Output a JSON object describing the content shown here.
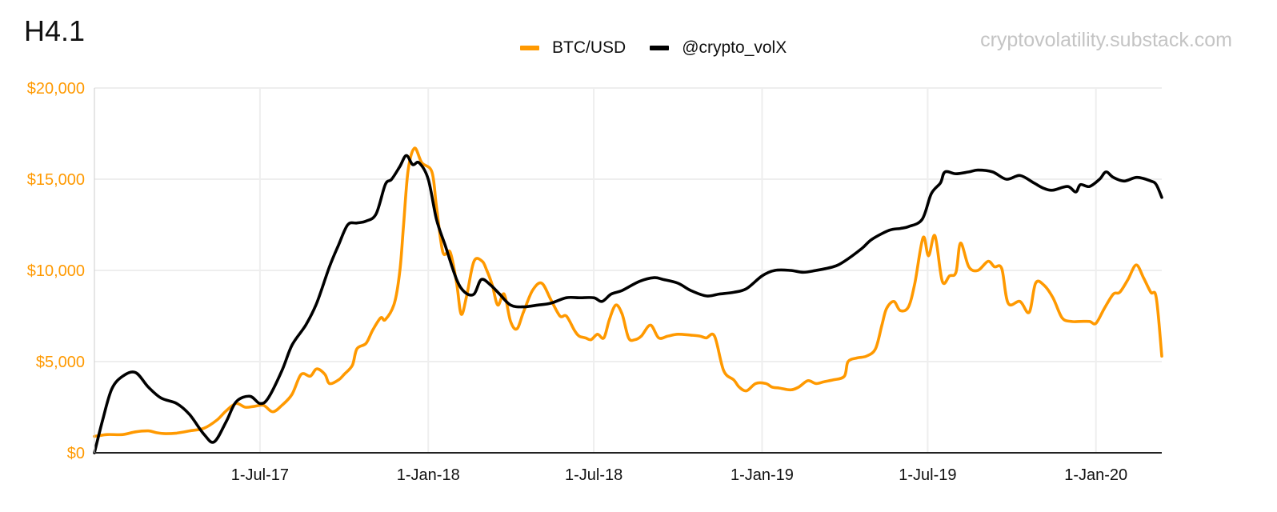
{
  "header": {
    "title": "H4.1",
    "watermark": "cryptovolatility.substack.com"
  },
  "colors": {
    "btc": "#ff9900",
    "volx": "#000000",
    "y_axis_text": "#ff9900",
    "grid": "#eeeeee"
  },
  "chart_data": {
    "type": "line",
    "title": "H4.1",
    "xlabel": "",
    "ylabel": "",
    "ylim": [
      0,
      20000
    ],
    "y_ticks": [
      0,
      5000,
      10000,
      15000,
      20000
    ],
    "y_tick_labels": [
      "$0",
      "$5,000",
      "$10,000",
      "$15,000",
      "$20,000"
    ],
    "x_range": [
      "2017-01-01",
      "2020-03-13"
    ],
    "x_ticks": [
      "2017-07-01",
      "2018-01-01",
      "2018-07-01",
      "2019-01-01",
      "2019-07-01",
      "2020-01-01"
    ],
    "x_tick_labels": [
      "1-Jul-17",
      "1-Jan-18",
      "1-Jul-18",
      "1-Jan-19",
      "1-Jul-19",
      "1-Jan-20"
    ],
    "grid": true,
    "legend_position": "top-center",
    "series": [
      {
        "name": "BTC/USD",
        "color": "#ff9900",
        "points": [
          [
            "2017-01-01",
            900
          ],
          [
            "2017-01-15",
            1000
          ],
          [
            "2017-02-01",
            1000
          ],
          [
            "2017-02-15",
            1150
          ],
          [
            "2017-03-01",
            1200
          ],
          [
            "2017-03-10",
            1100
          ],
          [
            "2017-03-20",
            1050
          ],
          [
            "2017-04-01",
            1080
          ],
          [
            "2017-04-15",
            1200
          ],
          [
            "2017-05-01",
            1350
          ],
          [
            "2017-05-15",
            1800
          ],
          [
            "2017-05-25",
            2300
          ],
          [
            "2017-06-05",
            2700
          ],
          [
            "2017-06-15",
            2500
          ],
          [
            "2017-06-25",
            2550
          ],
          [
            "2017-07-05",
            2600
          ],
          [
            "2017-07-15",
            2250
          ],
          [
            "2017-07-25",
            2600
          ],
          [
            "2017-08-05",
            3200
          ],
          [
            "2017-08-15",
            4300
          ],
          [
            "2017-08-25",
            4200
          ],
          [
            "2017-09-01",
            4600
          ],
          [
            "2017-09-10",
            4300
          ],
          [
            "2017-09-15",
            3800
          ],
          [
            "2017-09-25",
            4000
          ],
          [
            "2017-10-01",
            4300
          ],
          [
            "2017-10-10",
            4800
          ],
          [
            "2017-10-15",
            5700
          ],
          [
            "2017-10-25",
            6000
          ],
          [
            "2017-11-01",
            6700
          ],
          [
            "2017-11-10",
            7400
          ],
          [
            "2017-11-15",
            7300
          ],
          [
            "2017-11-25",
            8200
          ],
          [
            "2017-12-01",
            10000
          ],
          [
            "2017-12-05",
            12500
          ],
          [
            "2017-12-10",
            15500
          ],
          [
            "2017-12-17",
            16700
          ],
          [
            "2017-12-25",
            15900
          ],
          [
            "2018-01-05",
            15400
          ],
          [
            "2018-01-10",
            13500
          ],
          [
            "2018-01-17",
            11000
          ],
          [
            "2018-01-25",
            11000
          ],
          [
            "2018-02-01",
            9300
          ],
          [
            "2018-02-06",
            7600
          ],
          [
            "2018-02-12",
            8600
          ],
          [
            "2018-02-20",
            10500
          ],
          [
            "2018-03-01",
            10500
          ],
          [
            "2018-03-06",
            10000
          ],
          [
            "2018-03-12",
            9200
          ],
          [
            "2018-03-18",
            8100
          ],
          [
            "2018-03-25",
            8700
          ],
          [
            "2018-04-01",
            7200
          ],
          [
            "2018-04-08",
            6800
          ],
          [
            "2018-04-15",
            7700
          ],
          [
            "2018-04-25",
            8900
          ],
          [
            "2018-05-05",
            9300
          ],
          [
            "2018-05-15",
            8400
          ],
          [
            "2018-05-25",
            7500
          ],
          [
            "2018-06-01",
            7500
          ],
          [
            "2018-06-10",
            6700
          ],
          [
            "2018-06-15",
            6400
          ],
          [
            "2018-06-22",
            6300
          ],
          [
            "2018-06-28",
            6200
          ],
          [
            "2018-07-05",
            6500
          ],
          [
            "2018-07-12",
            6300
          ],
          [
            "2018-07-18",
            7300
          ],
          [
            "2018-07-25",
            8100
          ],
          [
            "2018-08-01",
            7600
          ],
          [
            "2018-08-08",
            6300
          ],
          [
            "2018-08-15",
            6200
          ],
          [
            "2018-08-22",
            6400
          ],
          [
            "2018-09-01",
            7000
          ],
          [
            "2018-09-10",
            6300
          ],
          [
            "2018-09-20",
            6400
          ],
          [
            "2018-10-01",
            6500
          ],
          [
            "2018-10-15",
            6450
          ],
          [
            "2018-10-25",
            6400
          ],
          [
            "2018-11-01",
            6300
          ],
          [
            "2018-11-10",
            6400
          ],
          [
            "2018-11-20",
            4500
          ],
          [
            "2018-12-01",
            4000
          ],
          [
            "2018-12-07",
            3600
          ],
          [
            "2018-12-15",
            3400
          ],
          [
            "2018-12-25",
            3800
          ],
          [
            "2019-01-05",
            3800
          ],
          [
            "2019-01-12",
            3600
          ],
          [
            "2019-01-20",
            3550
          ],
          [
            "2019-02-01",
            3450
          ],
          [
            "2019-02-10",
            3600
          ],
          [
            "2019-02-20",
            3950
          ],
          [
            "2019-03-01",
            3800
          ],
          [
            "2019-03-10",
            3900
          ],
          [
            "2019-03-20",
            4000
          ],
          [
            "2019-04-01",
            4200
          ],
          [
            "2019-04-05",
            5000
          ],
          [
            "2019-04-15",
            5200
          ],
          [
            "2019-04-25",
            5300
          ],
          [
            "2019-05-05",
            5700
          ],
          [
            "2019-05-12",
            7000
          ],
          [
            "2019-05-17",
            7900
          ],
          [
            "2019-05-25",
            8300
          ],
          [
            "2019-06-01",
            7800
          ],
          [
            "2019-06-10",
            8000
          ],
          [
            "2019-06-17",
            9300
          ],
          [
            "2019-06-26",
            11800
          ],
          [
            "2019-07-02",
            10800
          ],
          [
            "2019-07-09",
            11900
          ],
          [
            "2019-07-17",
            9400
          ],
          [
            "2019-07-25",
            9700
          ],
          [
            "2019-08-01",
            9900
          ],
          [
            "2019-08-06",
            11500
          ],
          [
            "2019-08-15",
            10200
          ],
          [
            "2019-08-25",
            10000
          ],
          [
            "2019-09-05",
            10500
          ],
          [
            "2019-09-12",
            10200
          ],
          [
            "2019-09-20",
            10100
          ],
          [
            "2019-09-27",
            8200
          ],
          [
            "2019-10-10",
            8300
          ],
          [
            "2019-10-20",
            7700
          ],
          [
            "2019-10-27",
            9300
          ],
          [
            "2019-11-05",
            9200
          ],
          [
            "2019-11-15",
            8500
          ],
          [
            "2019-11-25",
            7400
          ],
          [
            "2019-12-05",
            7200
          ],
          [
            "2019-12-15",
            7200
          ],
          [
            "2019-12-25",
            7200
          ],
          [
            "2020-01-01",
            7100
          ],
          [
            "2020-01-10",
            7900
          ],
          [
            "2020-01-20",
            8700
          ],
          [
            "2020-01-27",
            8800
          ],
          [
            "2020-02-05",
            9500
          ],
          [
            "2020-02-14",
            10300
          ],
          [
            "2020-02-22",
            9600
          ],
          [
            "2020-03-01",
            8800
          ],
          [
            "2020-03-07",
            8500
          ],
          [
            "2020-03-13",
            5300
          ]
        ]
      },
      {
        "name": "@crypto_volX",
        "color": "#000000",
        "points": [
          [
            "2017-01-01",
            0
          ],
          [
            "2017-01-10",
            1800
          ],
          [
            "2017-01-20",
            3500
          ],
          [
            "2017-02-01",
            4200
          ],
          [
            "2017-02-15",
            4400
          ],
          [
            "2017-03-01",
            3600
          ],
          [
            "2017-03-15",
            3000
          ],
          [
            "2017-04-01",
            2700
          ],
          [
            "2017-04-15",
            2100
          ],
          [
            "2017-05-01",
            1000
          ],
          [
            "2017-05-12",
            600
          ],
          [
            "2017-05-25",
            1700
          ],
          [
            "2017-06-05",
            2800
          ],
          [
            "2017-06-20",
            3100
          ],
          [
            "2017-07-01",
            2700
          ],
          [
            "2017-07-10",
            3000
          ],
          [
            "2017-07-25",
            4500
          ],
          [
            "2017-08-05",
            5900
          ],
          [
            "2017-08-20",
            7000
          ],
          [
            "2017-09-01",
            8200
          ],
          [
            "2017-09-15",
            10200
          ],
          [
            "2017-09-25",
            11400
          ],
          [
            "2017-10-05",
            12500
          ],
          [
            "2017-10-15",
            12600
          ],
          [
            "2017-10-25",
            12700
          ],
          [
            "2017-11-05",
            13100
          ],
          [
            "2017-11-15",
            14700
          ],
          [
            "2017-11-22",
            15000
          ],
          [
            "2017-12-01",
            15700
          ],
          [
            "2017-12-08",
            16300
          ],
          [
            "2017-12-15",
            15800
          ],
          [
            "2017-12-22",
            15900
          ],
          [
            "2018-01-01",
            15000
          ],
          [
            "2018-01-10",
            12800
          ],
          [
            "2018-01-20",
            11300
          ],
          [
            "2018-02-01",
            9500
          ],
          [
            "2018-02-10",
            8800
          ],
          [
            "2018-02-20",
            8700
          ],
          [
            "2018-02-28",
            9500
          ],
          [
            "2018-03-10",
            9200
          ],
          [
            "2018-03-20",
            8700
          ],
          [
            "2018-04-01",
            8100
          ],
          [
            "2018-04-15",
            8000
          ],
          [
            "2018-05-01",
            8100
          ],
          [
            "2018-05-15",
            8200
          ],
          [
            "2018-06-01",
            8500
          ],
          [
            "2018-06-15",
            8500
          ],
          [
            "2018-07-01",
            8500
          ],
          [
            "2018-07-10",
            8300
          ],
          [
            "2018-07-20",
            8700
          ],
          [
            "2018-08-01",
            8900
          ],
          [
            "2018-08-20",
            9400
          ],
          [
            "2018-09-05",
            9600
          ],
          [
            "2018-09-15",
            9500
          ],
          [
            "2018-10-01",
            9300
          ],
          [
            "2018-10-15",
            8900
          ],
          [
            "2018-11-01",
            8600
          ],
          [
            "2018-11-15",
            8700
          ],
          [
            "2018-12-01",
            8800
          ],
          [
            "2018-12-15",
            9000
          ],
          [
            "2019-01-01",
            9700
          ],
          [
            "2019-01-15",
            10000
          ],
          [
            "2019-02-01",
            10000
          ],
          [
            "2019-02-15",
            9900
          ],
          [
            "2019-03-01",
            10000
          ],
          [
            "2019-03-20",
            10200
          ],
          [
            "2019-04-01",
            10500
          ],
          [
            "2019-04-20",
            11200
          ],
          [
            "2019-05-01",
            11700
          ],
          [
            "2019-05-20",
            12200
          ],
          [
            "2019-06-01",
            12300
          ],
          [
            "2019-06-10",
            12400
          ],
          [
            "2019-06-25",
            12800
          ],
          [
            "2019-07-05",
            14200
          ],
          [
            "2019-07-15",
            14800
          ],
          [
            "2019-07-20",
            15400
          ],
          [
            "2019-08-01",
            15300
          ],
          [
            "2019-08-15",
            15400
          ],
          [
            "2019-08-25",
            15500
          ],
          [
            "2019-09-10",
            15400
          ],
          [
            "2019-09-25",
            15000
          ],
          [
            "2019-10-10",
            15200
          ],
          [
            "2019-10-25",
            14800
          ],
          [
            "2019-11-05",
            14500
          ],
          [
            "2019-11-15",
            14400
          ],
          [
            "2019-12-01",
            14600
          ],
          [
            "2019-12-10",
            14300
          ],
          [
            "2019-12-15",
            14700
          ],
          [
            "2019-12-25",
            14600
          ],
          [
            "2020-01-05",
            15000
          ],
          [
            "2020-01-12",
            15400
          ],
          [
            "2020-01-20",
            15100
          ],
          [
            "2020-02-01",
            14900
          ],
          [
            "2020-02-15",
            15100
          ],
          [
            "2020-03-01",
            14900
          ],
          [
            "2020-03-07",
            14700
          ],
          [
            "2020-03-13",
            14000
          ]
        ]
      }
    ]
  }
}
